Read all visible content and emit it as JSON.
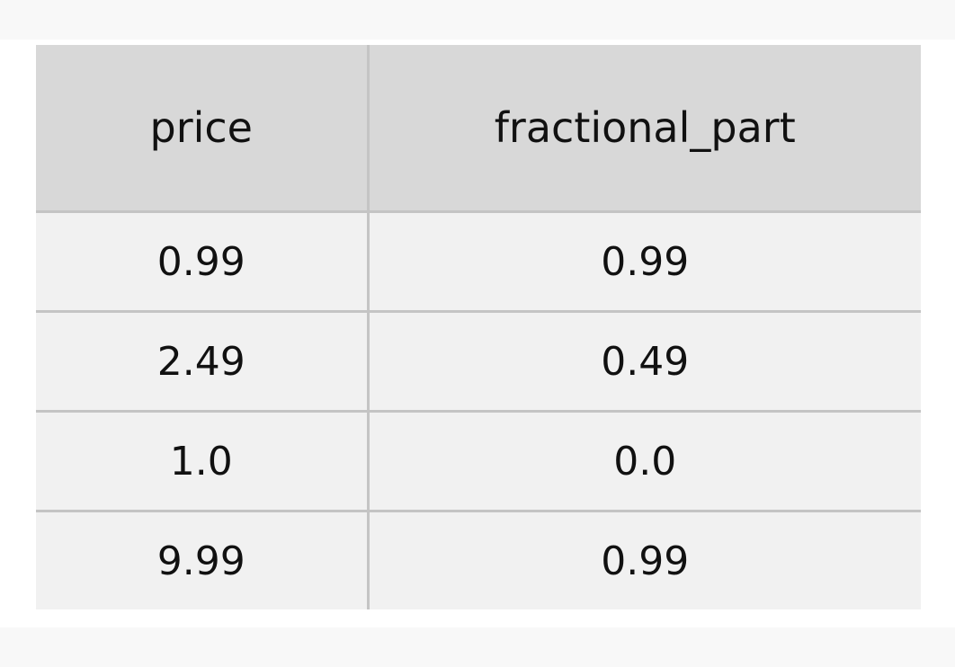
{
  "table": {
    "columns": [
      "price",
      "fractional_part"
    ],
    "rows": [
      [
        "0.99",
        "0.99"
      ],
      [
        "2.49",
        "0.49"
      ],
      [
        "1.0",
        "0.0"
      ],
      [
        "9.99",
        "0.99"
      ]
    ]
  }
}
